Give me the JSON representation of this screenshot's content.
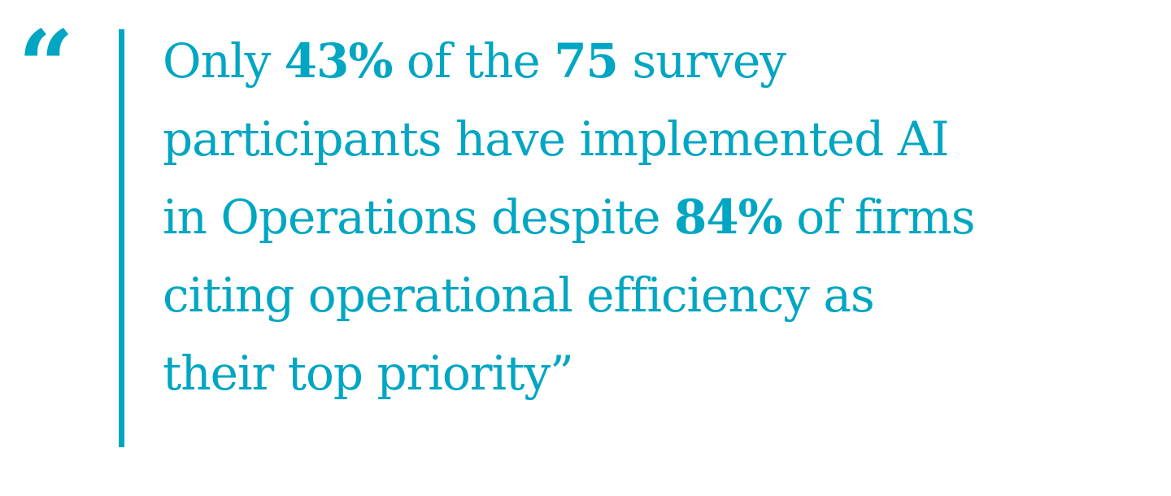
{
  "colors": {
    "accent": "#00a6c2",
    "background": "#ffffff"
  },
  "quote": {
    "open_mark": "“",
    "lines": [
      {
        "parts": [
          {
            "text": "Only ",
            "emphasis": false
          },
          {
            "text": "43%",
            "emphasis": true
          },
          {
            "text": " of the ",
            "emphasis": false
          },
          {
            "text": "75",
            "emphasis": true
          },
          {
            "text": " survey",
            "emphasis": false
          }
        ]
      },
      {
        "parts": [
          {
            "text": "participants have implemented AI",
            "emphasis": false
          }
        ]
      },
      {
        "parts": [
          {
            "text": "in Operations despite ",
            "emphasis": false
          },
          {
            "text": "84%",
            "emphasis": true
          },
          {
            "text": " of firms",
            "emphasis": false
          }
        ]
      },
      {
        "parts": [
          {
            "text": "citing operational efficiency as",
            "emphasis": false
          }
        ]
      },
      {
        "parts": [
          {
            "text": "their top priority”",
            "emphasis": false
          }
        ]
      }
    ]
  }
}
